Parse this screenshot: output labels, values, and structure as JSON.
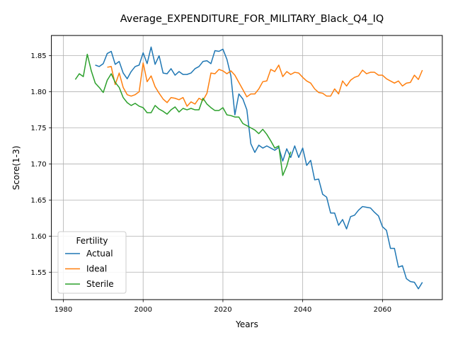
{
  "chart_data": {
    "type": "line",
    "title": "Average_EXPENDITURE_FOR_MILITARY_Black_Q4_IQ",
    "xlabel": "Years",
    "ylabel": "Score(1-3)",
    "xlim": [
      1977,
      2075
    ],
    "ylim": [
      1.512,
      1.878
    ],
    "xticks": [
      1980,
      2000,
      2020,
      2040,
      2060
    ],
    "yticks": [
      1.55,
      1.6,
      1.65,
      1.7,
      1.75,
      1.8,
      1.85
    ],
    "xtick_labels": [
      "1980",
      "2000",
      "2020",
      "2040",
      "2060"
    ],
    "ytick_labels": [
      "1.55",
      "1.60",
      "1.65",
      "1.70",
      "1.75",
      "1.80",
      "1.85"
    ],
    "grid": true,
    "legend": {
      "title": "Fertility",
      "placement": "lower-left"
    },
    "series": [
      {
        "name": "Actual",
        "color": "#1f77b4",
        "x": [
          1988,
          1989,
          1990,
          1991,
          1992,
          1993,
          1994,
          1995,
          1996,
          1997,
          1998,
          1999,
          2000,
          2001,
          2002,
          2003,
          2004,
          2005,
          2006,
          2007,
          2008,
          2009,
          2010,
          2011,
          2012,
          2013,
          2014,
          2015,
          2016,
          2017,
          2018,
          2019,
          2020,
          2021,
          2022,
          2023,
          2024,
          2025,
          2026,
          2027,
          2028,
          2029,
          2030,
          2031,
          2032,
          2033,
          2034,
          2035,
          2036,
          2037,
          2038,
          2039,
          2040,
          2041,
          2042,
          2043,
          2044,
          2045,
          2046,
          2047,
          2048,
          2049,
          2050,
          2051,
          2052,
          2053,
          2054,
          2055,
          2056,
          2057,
          2058,
          2059,
          2060,
          2061,
          2062,
          2063,
          2064,
          2065,
          2066,
          2067,
          2068,
          2069,
          2070
        ],
        "y": [
          1.837,
          1.835,
          1.839,
          1.853,
          1.856,
          1.838,
          1.842,
          1.826,
          1.818,
          1.828,
          1.835,
          1.837,
          1.854,
          1.839,
          1.862,
          1.838,
          1.85,
          1.826,
          1.825,
          1.832,
          1.823,
          1.828,
          1.824,
          1.824,
          1.826,
          1.832,
          1.835,
          1.842,
          1.843,
          1.839,
          1.857,
          1.856,
          1.859,
          1.845,
          1.822,
          1.768,
          1.797,
          1.79,
          1.775,
          1.728,
          1.716,
          1.726,
          1.722,
          1.725,
          1.722,
          1.719,
          1.723,
          1.704,
          1.721,
          1.709,
          1.725,
          1.709,
          1.722,
          1.698,
          1.705,
          1.678,
          1.679,
          1.658,
          1.654,
          1.632,
          1.632,
          1.615,
          1.623,
          1.61,
          1.627,
          1.629,
          1.636,
          1.641,
          1.64,
          1.639,
          1.633,
          1.628,
          1.613,
          1.608,
          1.583,
          1.583,
          1.557,
          1.559,
          1.541,
          1.537,
          1.536,
          1.527,
          1.536
        ]
      },
      {
        "name": "Ideal",
        "color": "#ff7f0e",
        "x": [
          1991,
          1992,
          1993,
          1994,
          1995,
          1996,
          1997,
          1998,
          1999,
          2000,
          2001,
          2002,
          2003,
          2004,
          2005,
          2006,
          2007,
          2008,
          2009,
          2010,
          2011,
          2012,
          2013,
          2014,
          2015,
          2016,
          2017,
          2018,
          2019,
          2020,
          2021,
          2022,
          2023,
          2024,
          2025,
          2026,
          2027,
          2028,
          2029,
          2030,
          2031,
          2032,
          2033,
          2034,
          2035,
          2036,
          2037,
          2038,
          2039,
          2040,
          2041,
          2042,
          2043,
          2044,
          2045,
          2046,
          2047,
          2048,
          2049,
          2050,
          2051,
          2052,
          2053,
          2054,
          2055,
          2056,
          2057,
          2058,
          2059,
          2060,
          2061,
          2062,
          2063,
          2064,
          2065,
          2066,
          2067,
          2068,
          2069,
          2070
        ],
        "y": [
          1.834,
          1.835,
          1.81,
          1.826,
          1.806,
          1.796,
          1.794,
          1.796,
          1.8,
          1.84,
          1.814,
          1.822,
          1.807,
          1.798,
          1.79,
          1.785,
          1.792,
          1.791,
          1.789,
          1.792,
          1.78,
          1.786,
          1.783,
          1.791,
          1.788,
          1.798,
          1.826,
          1.825,
          1.831,
          1.829,
          1.825,
          1.829,
          1.823,
          1.813,
          1.803,
          1.793,
          1.797,
          1.797,
          1.804,
          1.814,
          1.815,
          1.831,
          1.828,
          1.837,
          1.821,
          1.828,
          1.824,
          1.827,
          1.826,
          1.82,
          1.815,
          1.812,
          1.804,
          1.799,
          1.798,
          1.794,
          1.794,
          1.804,
          1.797,
          1.815,
          1.808,
          1.816,
          1.82,
          1.822,
          1.83,
          1.825,
          1.827,
          1.827,
          1.823,
          1.823,
          1.818,
          1.815,
          1.812,
          1.815,
          1.808,
          1.812,
          1.813,
          1.823,
          1.817,
          1.83
        ]
      },
      {
        "name": "Sterile",
        "color": "#2ca02c",
        "x": [
          1983,
          1984,
          1985,
          1986,
          1987,
          1988,
          1989,
          1990,
          1991,
          1992,
          1993,
          1994,
          1995,
          1996,
          1997,
          1998,
          1999,
          2000,
          2001,
          2002,
          2003,
          2004,
          2005,
          2006,
          2007,
          2008,
          2009,
          2010,
          2011,
          2012,
          2013,
          2014,
          2015,
          2016,
          2017,
          2018,
          2019,
          2020,
          2021,
          2022,
          2023,
          2024,
          2025,
          2026,
          2027,
          2028,
          2029,
          2030,
          2031,
          2032,
          2033,
          2034,
          2035,
          2036,
          2037
        ],
        "y": [
          1.817,
          1.825,
          1.821,
          1.852,
          1.829,
          1.812,
          1.806,
          1.799,
          1.816,
          1.825,
          1.813,
          1.806,
          1.792,
          1.785,
          1.781,
          1.784,
          1.78,
          1.778,
          1.771,
          1.771,
          1.781,
          1.776,
          1.773,
          1.769,
          1.775,
          1.779,
          1.772,
          1.777,
          1.775,
          1.777,
          1.775,
          1.775,
          1.791,
          1.783,
          1.778,
          1.774,
          1.774,
          1.778,
          1.768,
          1.767,
          1.765,
          1.765,
          1.756,
          1.753,
          1.75,
          1.747,
          1.742,
          1.748,
          1.741,
          1.732,
          1.722,
          1.725,
          1.684,
          1.697,
          1.717
        ]
      }
    ]
  }
}
